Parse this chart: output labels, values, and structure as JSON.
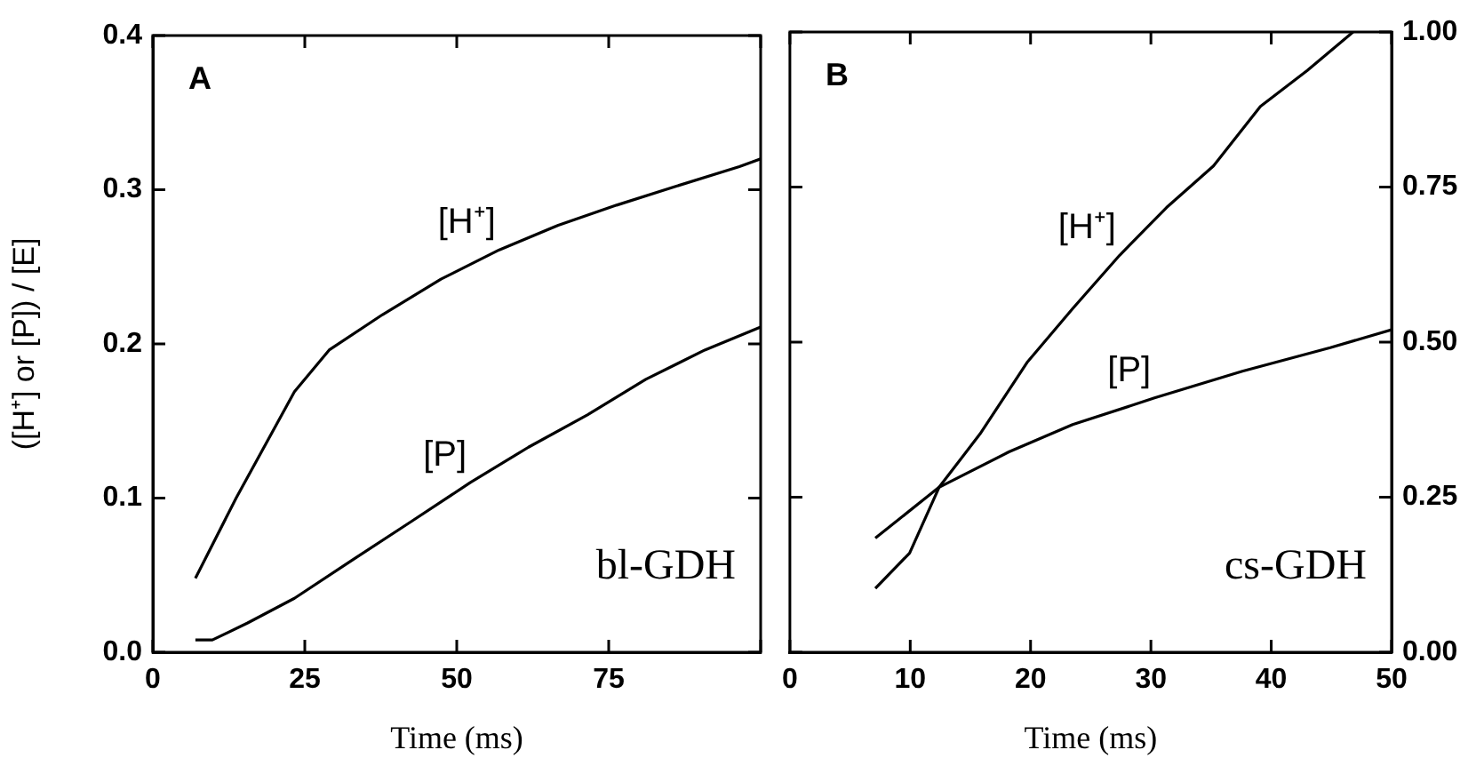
{
  "chart_data": [
    {
      "type": "line",
      "xlabel": "Time (ms)",
      "ylabel": "([H⁺] or [P]) / [E]",
      "annotations": [
        "A",
        "bl-GDH"
      ],
      "xlim": [
        0,
        100
      ],
      "xticks": [
        0,
        25,
        50,
        75,
        {
          "value": 100,
          "label": null
        }
      ],
      "ylim": [
        0,
        0.4
      ],
      "yticks": [
        {
          "value": 0,
          "label": "0.0"
        },
        0.1,
        0.2,
        0.3,
        0.4
      ],
      "grid": false,
      "legend": false,
      "marker": "none",
      "line_style": "solid",
      "series": [
        {
          "name": "[H⁺]",
          "color": "#000000",
          "x": [
            7,
            13.7,
            23.3,
            29,
            37.8,
            47.4,
            57,
            66.7,
            76.3,
            85.9,
            96.5,
            100
          ],
          "values": [
            0.048,
            0.1,
            0.169,
            0.196,
            0.219,
            0.242,
            0.261,
            0.277,
            0.29,
            0.302,
            0.315,
            0.32
          ]
        },
        {
          "name": "[P]",
          "color": "#000000",
          "x": [
            7,
            9.8,
            15.6,
            23.3,
            32.9,
            42.6,
            52.2,
            61.8,
            71.5,
            81.1,
            90.8,
            100
          ],
          "values": [
            0.008,
            0.008,
            0.019,
            0.035,
            0.06,
            0.085,
            0.11,
            0.133,
            0.154,
            0.177,
            0.196,
            0.211
          ]
        }
      ]
    },
    {
      "type": "line",
      "xlabel": "Time (ms)",
      "annotations": [
        "B",
        "cs-GDH"
      ],
      "xlim": [
        0,
        50
      ],
      "xticks": [
        0,
        10,
        20,
        30,
        40,
        50
      ],
      "y2lim": [
        0,
        1
      ],
      "y2ticks": [
        {
          "value": 0,
          "label": "0.00"
        },
        {
          "value": 0.25,
          "label": "0.25"
        },
        {
          "value": 0.5,
          "label": "0.50"
        },
        {
          "value": 0.75,
          "label": "0.75"
        },
        {
          "value": 1,
          "label": "1.00"
        }
      ],
      "grid": false,
      "legend": false,
      "marker": "none",
      "line_style": "solid",
      "series": [
        {
          "name": "[H⁺]",
          "color": "#000000",
          "axis": "y2",
          "x": [
            7.1,
            9.95,
            12.4,
            15.8,
            19.7,
            23.5,
            27.4,
            31.3,
            35.2,
            39.1,
            43,
            46.8
          ],
          "values": [
            0.103,
            0.16,
            0.266,
            0.352,
            0.467,
            0.554,
            0.64,
            0.717,
            0.784,
            0.88,
            0.938,
            1.0
          ]
        },
        {
          "name": "[P]",
          "color": "#000000",
          "axis": "y2",
          "x": [
            7.1,
            12.4,
            18.2,
            23.5,
            30.3,
            37.6,
            44.9,
            50
          ],
          "values": [
            0.184,
            0.266,
            0.323,
            0.367,
            0.41,
            0.453,
            0.491,
            0.52
          ]
        }
      ]
    }
  ]
}
